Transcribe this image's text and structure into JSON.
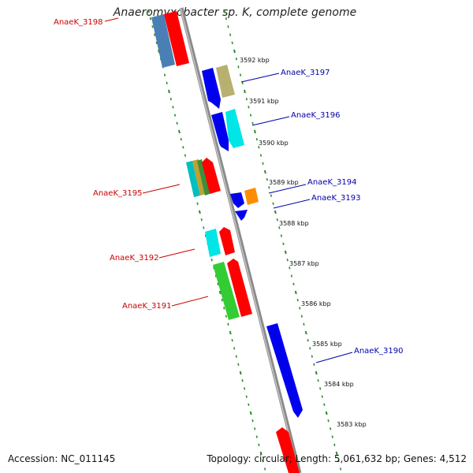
{
  "title": "Anaeromyxobacter sp. K, complete genome",
  "accession_text": "Accession: NC_011145",
  "summary_text": "Topology: circular; Length: 5,061,632 bp; Genes: 4,512",
  "scale_labels": [
    "3592 kbp",
    "3591 kbp",
    "3590 kbp",
    "3589 kbp",
    "3588 kbp",
    "3587 kbp",
    "3586 kbp",
    "3585 kbp",
    "3584 kbp",
    "3583 kbp"
  ],
  "colors": {
    "reverse_strand_label": "#cc0000",
    "forward_strand_label": "#0000aa",
    "backbone": "#8a8a8a",
    "tick_marks": "#2e8b2e"
  },
  "gene_labels": [
    {
      "name": "AnaeK_3198",
      "strand": "reverse"
    },
    {
      "name": "AnaeK_3197",
      "strand": "forward"
    },
    {
      "name": "AnaeK_3196",
      "strand": "forward"
    },
    {
      "name": "AnaeK_3195",
      "strand": "reverse"
    },
    {
      "name": "AnaeK_3194",
      "strand": "forward"
    },
    {
      "name": "AnaeK_3193",
      "strand": "forward"
    },
    {
      "name": "AnaeK_3192",
      "strand": "reverse"
    },
    {
      "name": "AnaeK_3191",
      "strand": "reverse"
    },
    {
      "name": "AnaeK_3190",
      "strand": "forward"
    }
  ]
}
